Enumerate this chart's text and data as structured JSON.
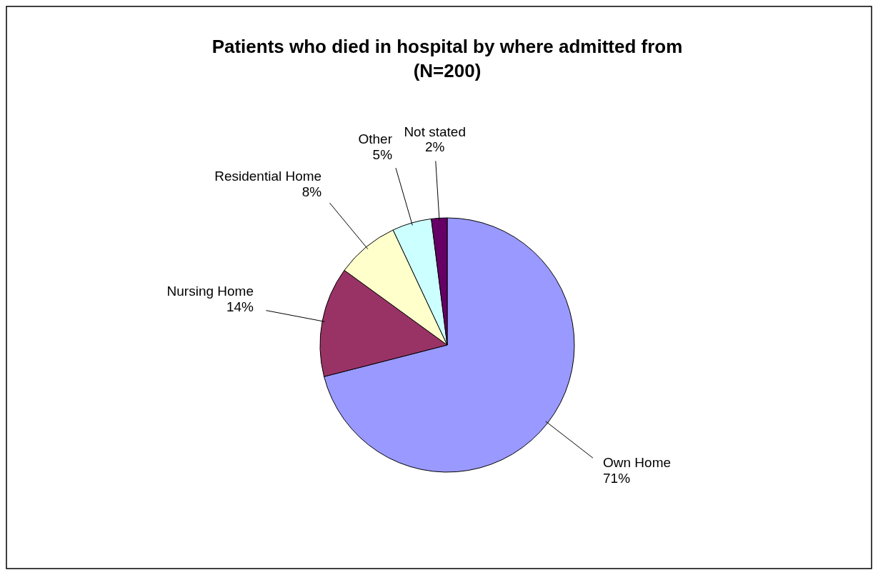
{
  "chart_data": {
    "type": "pie",
    "title": "Patients who died in hospital by where admitted from (N=200)",
    "categories": [
      "Own Home",
      "Nursing Home",
      "Residential Home",
      "Other",
      "Not stated"
    ],
    "values": [
      71,
      14,
      8,
      5,
      2
    ],
    "value_labels": [
      "71%",
      "14%",
      "8%",
      "5%",
      "2%"
    ],
    "colors": [
      "#9999ff",
      "#993366",
      "#ffffcc",
      "#ccffff",
      "#660066"
    ],
    "legend": false
  }
}
